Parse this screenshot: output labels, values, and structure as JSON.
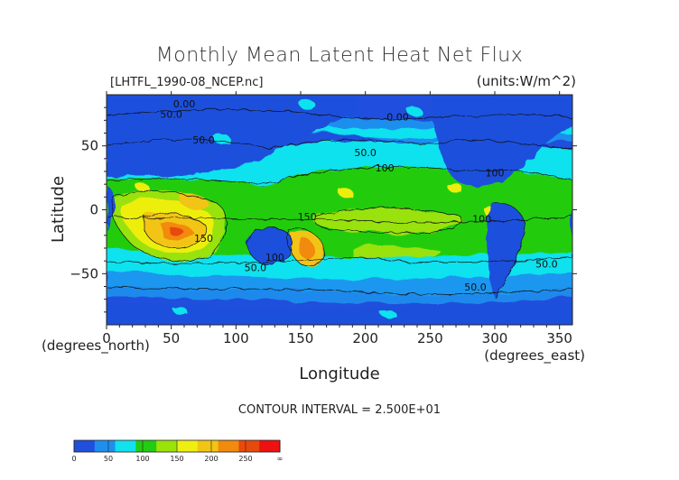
{
  "chart_data": {
    "type": "heatmap",
    "title": "Monthly Mean Latent Heat Net Flux",
    "file_label": "[LHTFL_1990-08_NCEP.nc]",
    "units_label": "(units:W/m^2)",
    "xlabel": "Longitude",
    "ylabel": "Latitude",
    "x_unit_label": "(degrees_east)",
    "y_unit_label": "(degrees_north)",
    "xlim": [
      0,
      360
    ],
    "ylim": [
      -90,
      90
    ],
    "x_ticks": [
      "0",
      "50",
      "100",
      "150",
      "200",
      "250",
      "300",
      "350"
    ],
    "x_tick_values": [
      0,
      50,
      100,
      150,
      200,
      250,
      300,
      350
    ],
    "y_ticks": [
      "50",
      "0",
      "−50"
    ],
    "y_tick_values": [
      50,
      0,
      -50
    ],
    "contour_interval_text": "CONTOUR INTERVAL = 2.500E+01",
    "contour_labels": [
      {
        "text": "0.00",
        "lon": 60,
        "lat": 80
      },
      {
        "text": "50.0",
        "lon": 50,
        "lat": 72
      },
      {
        "text": "50.0",
        "lon": 75,
        "lat": 52
      },
      {
        "text": "0.00",
        "lon": 225,
        "lat": 70
      },
      {
        "text": "50.0",
        "lon": 200,
        "lat": 42
      },
      {
        "text": "100",
        "lon": 215,
        "lat": 30
      },
      {
        "text": "100",
        "lon": 300,
        "lat": 26
      },
      {
        "text": "100",
        "lon": 290,
        "lat": -10
      },
      {
        "text": "150",
        "lon": 155,
        "lat": -8
      },
      {
        "text": "150",
        "lon": 75,
        "lat": -25
      },
      {
        "text": "100",
        "lon": 130,
        "lat": -40
      },
      {
        "text": "50.0",
        "lon": 115,
        "lat": -48
      },
      {
        "text": "50.0",
        "lon": 340,
        "lat": -45
      },
      {
        "text": "50.0",
        "lon": 285,
        "lat": -63
      }
    ],
    "colorbar": {
      "levels": [
        "0",
        "50",
        "100",
        "150",
        "200",
        "250",
        "∞"
      ],
      "colors": [
        "#1f4fdc",
        "#1f8fee",
        "#11e2ee",
        "#22cc11",
        "#99e20a",
        "#eeee11",
        "#f2c413",
        "#f28a0e",
        "#e84a0a",
        "#ee1111"
      ]
    }
  }
}
